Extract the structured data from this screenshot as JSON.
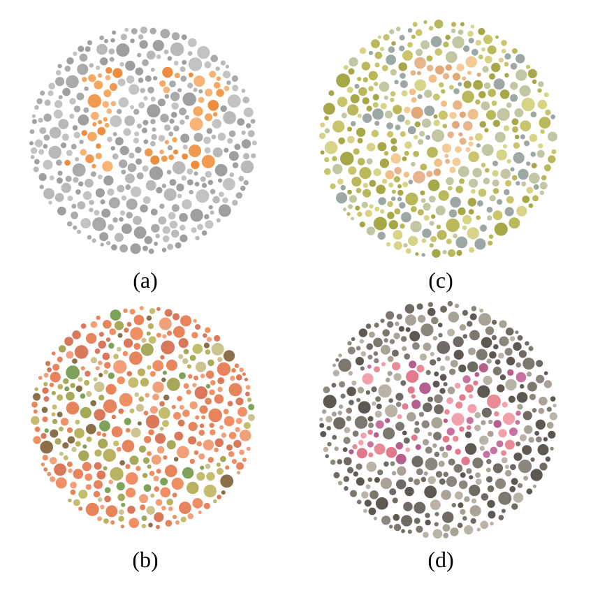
{
  "figure": {
    "panels": [
      {
        "id": "a",
        "caption": "(a)",
        "plate_number": "12",
        "palette": "gray-orange",
        "background_dot_colors": [
          "#a9aaab",
          "#b8b9ba",
          "#9e9fa1",
          "#c2c3c4"
        ],
        "figure_dot_colors": [
          "#f19a4f",
          "#f5a862",
          "#ee8d3e",
          "#f8b477"
        ]
      },
      {
        "id": "c",
        "caption": "(c)",
        "plate_number": "5",
        "palette": "olive-yellow",
        "background_dot_colors": [
          "#b9b85a",
          "#c9c56d",
          "#a7a747",
          "#d8d487",
          "#9da8a6",
          "#c3c6a3"
        ],
        "figure_dot_colors": [
          "#f1c08a",
          "#e8b48a",
          "#f4cb95",
          "#e3a878"
        ]
      },
      {
        "id": "b",
        "caption": "(b)",
        "plate_number": "",
        "palette": "orange-green",
        "background_dot_colors": [
          "#e8845c",
          "#ef8f63",
          "#d9785a",
          "#f2a07a"
        ],
        "figure_dot_colors": [
          "#b9b260",
          "#a7a85a",
          "#c5bd6e",
          "#7fa25a",
          "#cdc390",
          "#8a6f48"
        ]
      },
      {
        "id": "d",
        "caption": "(d)",
        "plate_number": "26",
        "palette": "gray-pink",
        "background_dot_colors": [
          "#6f6a63",
          "#8c877e",
          "#a8a297",
          "#5d5852",
          "#b9b3a8",
          "#7d786f"
        ],
        "figure_dot_colors": [
          "#e98b97",
          "#f2a0aa",
          "#e27a8d",
          "#b45f8c",
          "#c8739f"
        ]
      }
    ]
  }
}
